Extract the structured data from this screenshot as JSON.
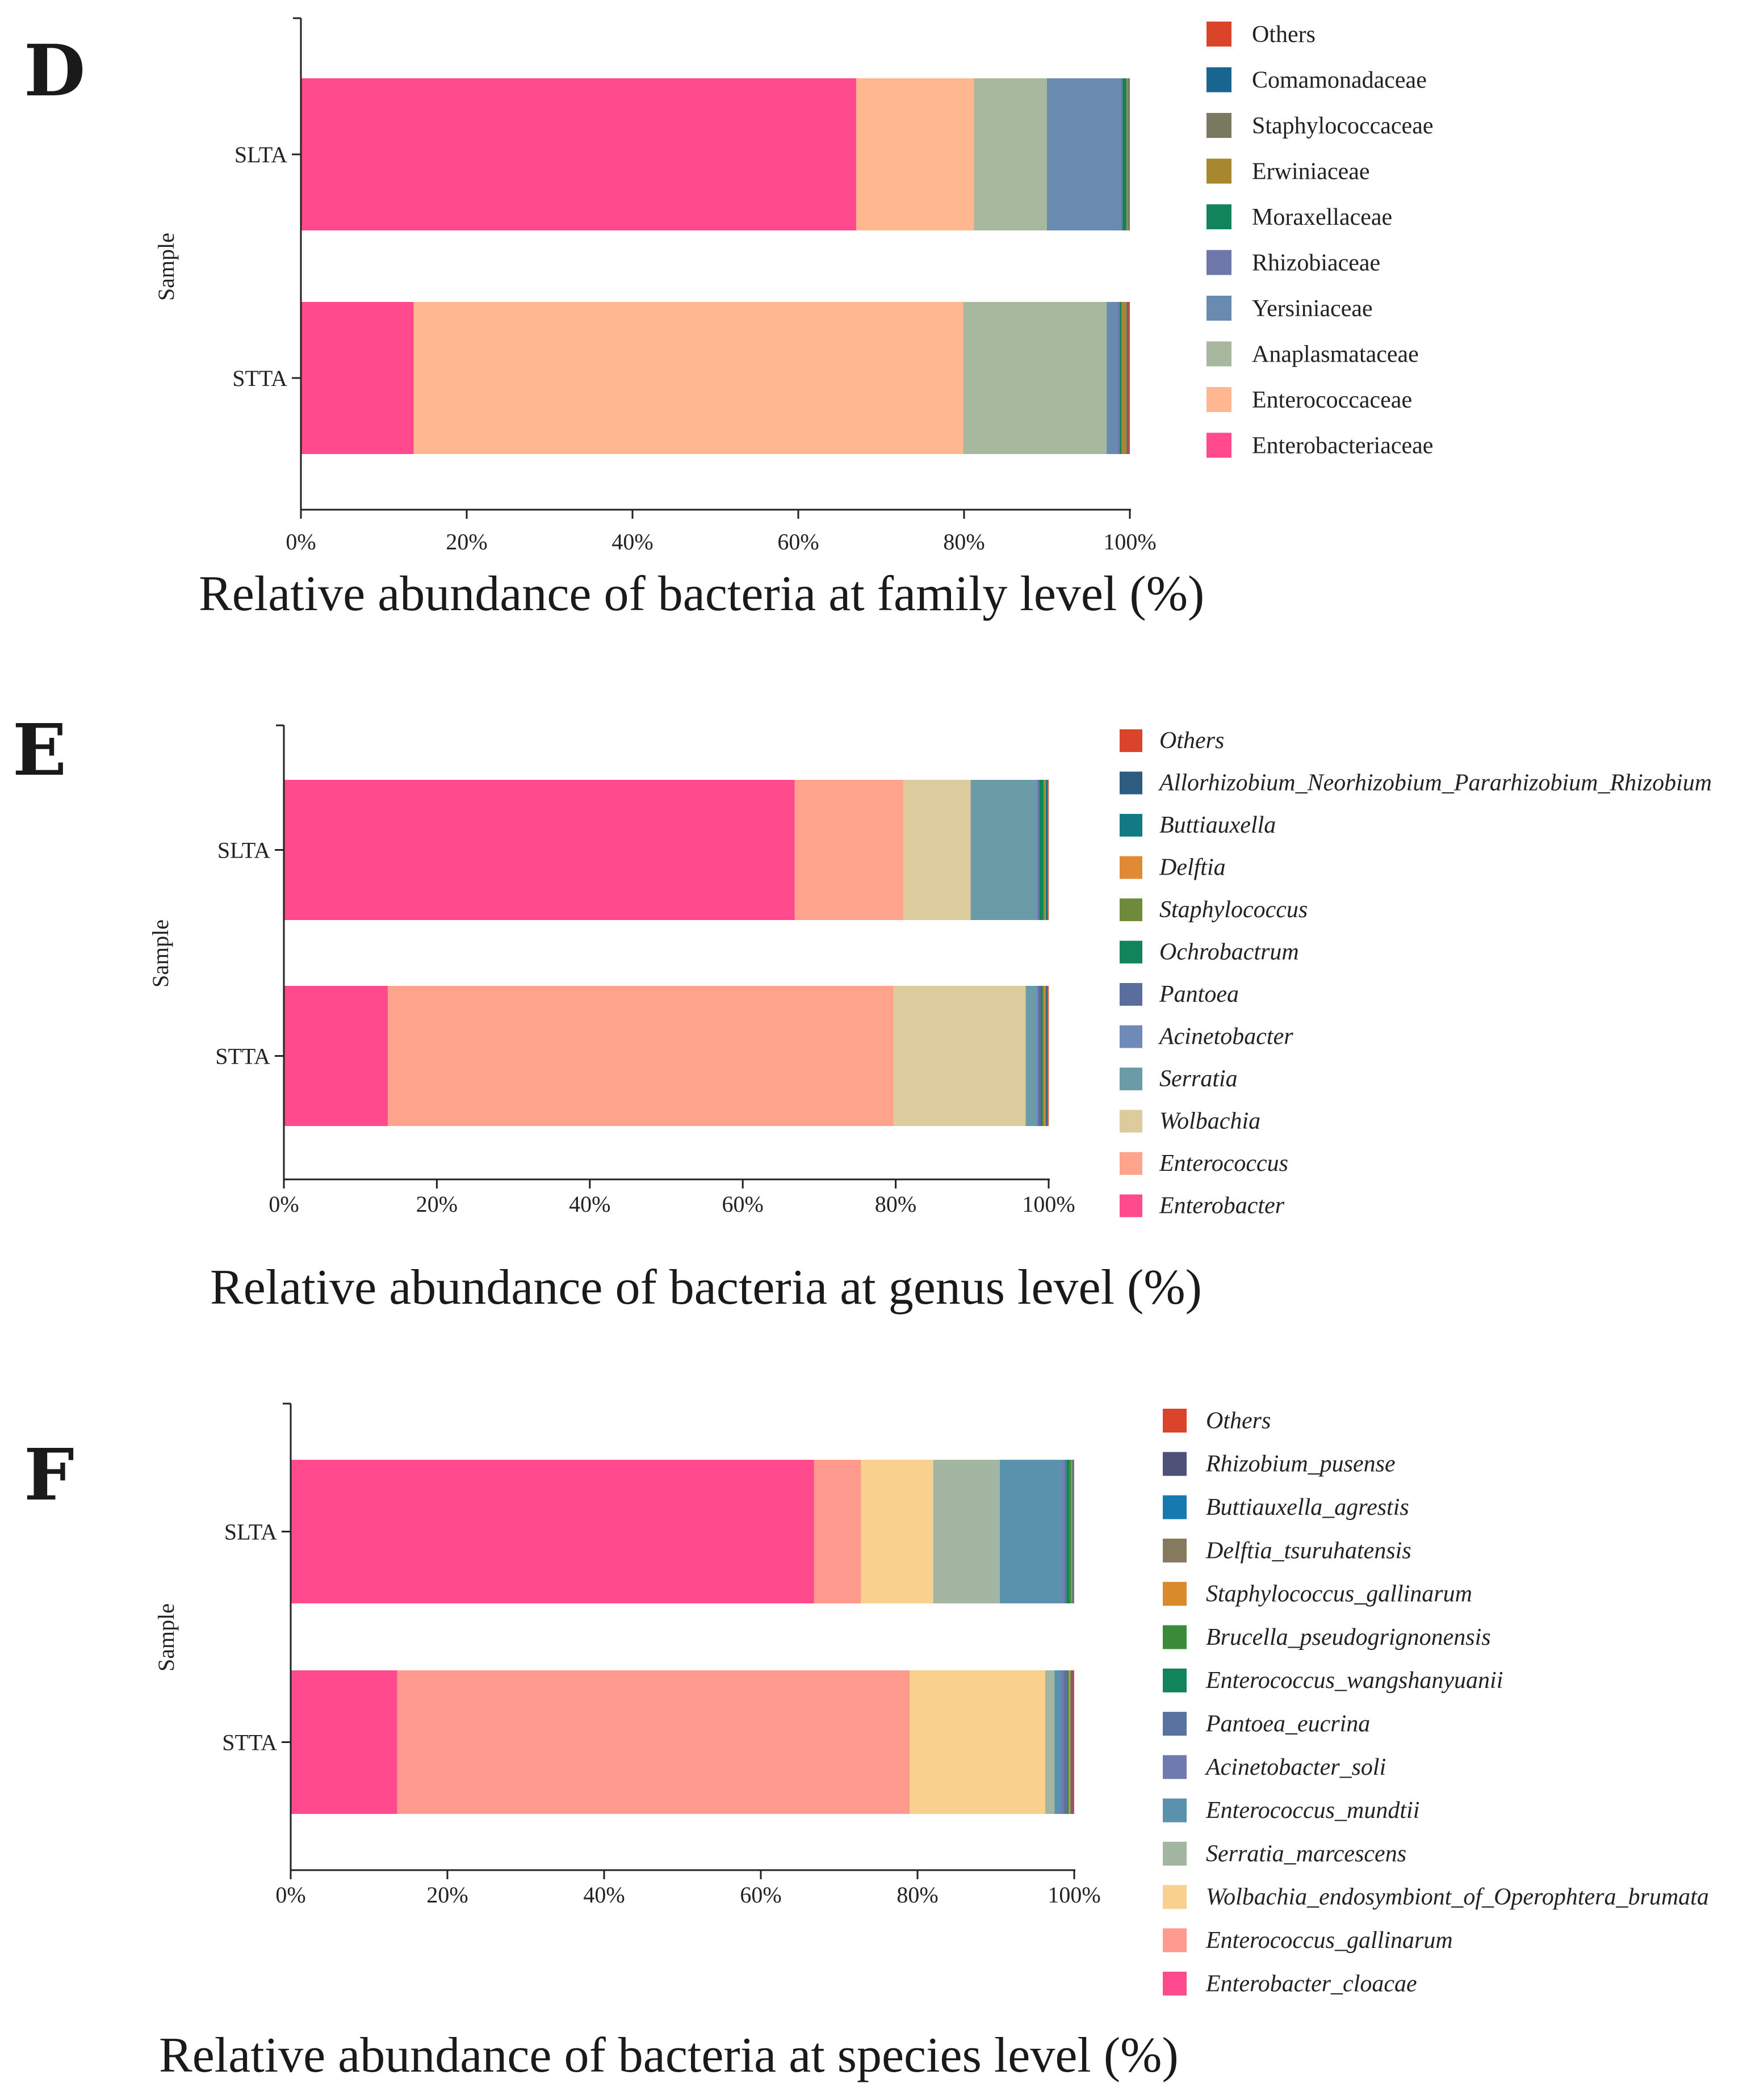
{
  "chart_data": [
    {
      "panel": "D",
      "type": "bar",
      "orientation": "horizontal",
      "stacked": true,
      "normalized": true,
      "categories": [
        "SLTA",
        "STTA"
      ],
      "ylabel": "Sample",
      "xlabel": "Relative abundance of bacteria at family level (%)",
      "xticks": [
        "0%",
        "20%",
        "40%",
        "60%",
        "80%",
        "100%"
      ],
      "xlim": [
        0,
        100
      ],
      "legend_italic": false,
      "series": [
        {
          "name": "Enterobacteriaceae",
          "color": "#FF4B8D",
          "values": [
            67.0,
            13.6
          ]
        },
        {
          "name": "Enterococcaceae",
          "color": "#FFB78F",
          "values": [
            14.2,
            66.3
          ]
        },
        {
          "name": "Anaplasmataceae",
          "color": "#A8B89E",
          "values": [
            8.8,
            17.3
          ]
        },
        {
          "name": "Yersiniaceae",
          "color": "#6A8BB0",
          "values": [
            8.9,
            1.3
          ]
        },
        {
          "name": "Rhizobiaceae",
          "color": "#6F78AA",
          "values": [
            0.2,
            0.3
          ]
        },
        {
          "name": "Moraxellaceae",
          "color": "#12845C",
          "values": [
            0.5,
            0.2
          ]
        },
        {
          "name": "Erwiniaceae",
          "color": "#A8882E",
          "values": [
            0.2,
            0.5
          ]
        },
        {
          "name": "Staphylococcaceae",
          "color": "#7A7A60",
          "values": [
            0.1,
            0.2
          ]
        },
        {
          "name": "Comamonadaceae",
          "color": "#1A6590",
          "values": [
            0.05,
            0.1
          ]
        },
        {
          "name": "Others",
          "color": "#D9442B",
          "values": [
            0.05,
            0.2
          ]
        }
      ]
    },
    {
      "panel": "E",
      "type": "bar",
      "orientation": "horizontal",
      "stacked": true,
      "normalized": true,
      "categories": [
        "SLTA",
        "STTA"
      ],
      "ylabel": "Sample",
      "xlabel": "Relative abundance of bacteria at genus level (%)",
      "xticks": [
        "0%",
        "20%",
        "40%",
        "60%",
        "80%",
        "100%"
      ],
      "xlim": [
        0,
        100
      ],
      "legend_italic": true,
      "series": [
        {
          "name": "Enterobacter",
          "color": "#FF4B8D",
          "values": [
            66.8,
            13.6
          ]
        },
        {
          "name": "Enterococcus",
          "color": "#FFA38D",
          "values": [
            14.2,
            66.1
          ]
        },
        {
          "name": "Wolbachia",
          "color": "#DCCB9C",
          "values": [
            8.8,
            17.3
          ]
        },
        {
          "name": "Serratia",
          "color": "#6A9CA8",
          "values": [
            8.6,
            1.3
          ]
        },
        {
          "name": "Acinetobacter",
          "color": "#6F8AB8",
          "values": [
            0.2,
            0.3
          ]
        },
        {
          "name": "Pantoea",
          "color": "#5A6E9E",
          "values": [
            0.2,
            0.4
          ]
        },
        {
          "name": "Ochrobactrum",
          "color": "#12845C",
          "values": [
            0.5,
            0.2
          ]
        },
        {
          "name": "Staphylococcus",
          "color": "#6E8A3A",
          "values": [
            0.2,
            0.2
          ]
        },
        {
          "name": "Delftia",
          "color": "#E08A35",
          "values": [
            0.1,
            0.2
          ]
        },
        {
          "name": "Buttiauxella",
          "color": "#117A85",
          "values": [
            0.2,
            0.1
          ]
        },
        {
          "name": "Allorhizobium_Neorhizobium_Pararhizobium_Rhizobium",
          "color": "#2D5C80",
          "values": [
            0.1,
            0.1
          ]
        },
        {
          "name": "Others",
          "color": "#D9442B",
          "values": [
            0.1,
            0.2
          ]
        }
      ]
    },
    {
      "panel": "F",
      "type": "bar",
      "orientation": "horizontal",
      "stacked": true,
      "normalized": true,
      "categories": [
        "SLTA",
        "STTA"
      ],
      "ylabel": "Sample",
      "xlabel": "Relative abundance of bacteria at species level (%)",
      "xticks": [
        "0%",
        "20%",
        "40%",
        "60%",
        "80%",
        "100%"
      ],
      "xlim": [
        0,
        100
      ],
      "legend_italic": true,
      "series": [
        {
          "name": "Enterobacter_cloacae",
          "color": "#FF4B8D",
          "values": [
            66.8,
            13.6
          ]
        },
        {
          "name": "Enterococcus_gallinarum",
          "color": "#FF9A8E",
          "values": [
            6.0,
            65.4
          ]
        },
        {
          "name": "Wolbachia_endosymbiont_of_Operophtera_brumata",
          "color": "#FAD08E",
          "values": [
            9.2,
            17.3
          ]
        },
        {
          "name": "Serratia_marcescens",
          "color": "#A3B6A2",
          "values": [
            8.5,
            1.2
          ]
        },
        {
          "name": "Enterococcus_mundtii",
          "color": "#5A92AE",
          "values": [
            8.0,
            0.8
          ]
        },
        {
          "name": "Acinetobacter_soli",
          "color": "#6F7BAE",
          "values": [
            0.3,
            0.4
          ]
        },
        {
          "name": "Pantoea_eucrina",
          "color": "#5A72A0",
          "values": [
            0.2,
            0.4
          ]
        },
        {
          "name": "Enterococcus_wangshanyuanii",
          "color": "#12845C",
          "values": [
            0.4,
            0.1
          ]
        },
        {
          "name": "Brucella_pseudogrignonensis",
          "color": "#3A8A3A",
          "values": [
            0.2,
            0.1
          ]
        },
        {
          "name": "Staphylococcus_gallinarum",
          "color": "#D98B2A",
          "values": [
            0.1,
            0.2
          ]
        },
        {
          "name": "Delftia_tsuruhatensis",
          "color": "#857A5E",
          "values": [
            0.1,
            0.1
          ]
        },
        {
          "name": "Buttiauxella_agrestis",
          "color": "#1679B0",
          "values": [
            0.1,
            0.1
          ]
        },
        {
          "name": "Rhizobium_pusense",
          "color": "#4E5278",
          "values": [
            0.05,
            0.1
          ]
        },
        {
          "name": "Others",
          "color": "#D9442B",
          "values": [
            0.05,
            0.2
          ]
        }
      ]
    }
  ]
}
